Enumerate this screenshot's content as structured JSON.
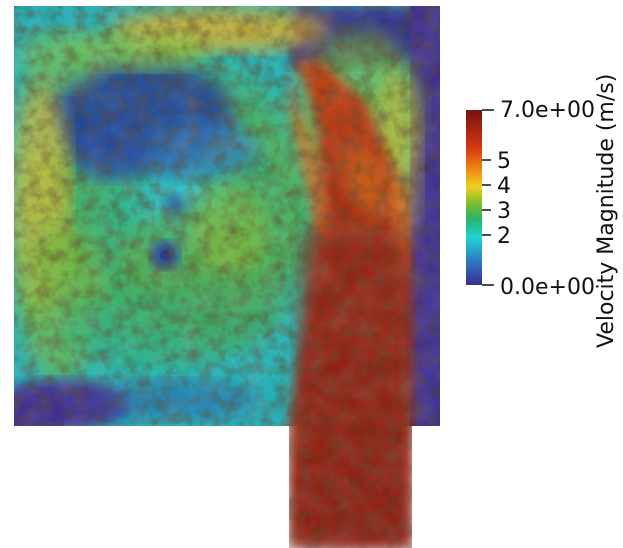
{
  "colorbar": {
    "title": "Velocity Magnitude (m/s)",
    "max_label": "7.0e+00",
    "min_label": "0.0e+00",
    "tick_labels": [
      "5",
      "4",
      "3",
      "2"
    ],
    "tick_values": [
      5,
      4,
      3,
      2
    ],
    "range": [
      0,
      7
    ],
    "colormap": [
      "#3b2b8f",
      "#2f6fbf",
      "#1fd3d6",
      "#2bb36a",
      "#7fbf2a",
      "#f0d020",
      "#f08a10",
      "#d43a12",
      "#7a1010"
    ]
  },
  "field": {
    "background_low": "#3b2b8f",
    "high_jet": "#b0300c"
  }
}
